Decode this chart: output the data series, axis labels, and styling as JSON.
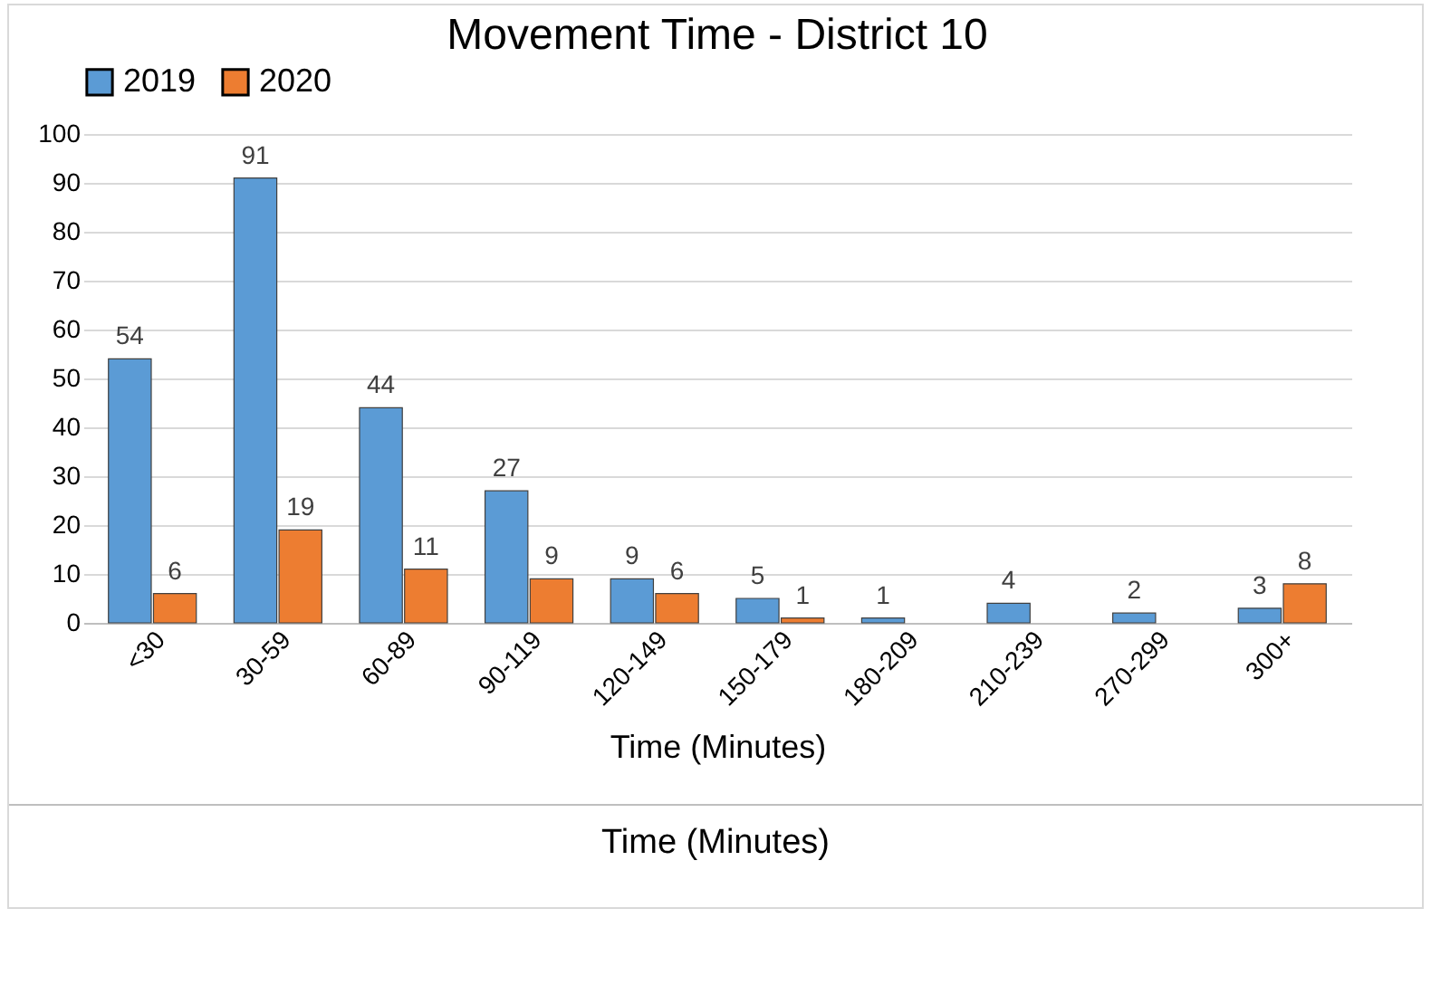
{
  "chart_data": {
    "type": "bar",
    "title": "Movement Time - District 10",
    "xlabel": "Time (Minutes)",
    "categories": [
      "<30",
      "30-59",
      "60-89",
      "90-119",
      "120-149",
      "150-179",
      "180-209",
      "210-239",
      "270-299",
      "300+"
    ],
    "series": [
      {
        "name": "2019",
        "color": "#5b9bd5",
        "values": [
          54,
          91,
          44,
          27,
          9,
          5,
          1,
          4,
          2,
          3
        ]
      },
      {
        "name": "2020",
        "color": "#ed7d31",
        "values": [
          6,
          19,
          11,
          9,
          6,
          1,
          null,
          null,
          null,
          8
        ]
      }
    ],
    "ylim": [
      0,
      100
    ],
    "yticks": [
      0,
      10,
      20,
      30,
      40,
      50,
      60,
      70,
      80,
      90,
      100
    ],
    "grid": "y",
    "legend": "top",
    "data_labels": true,
    "annotations": [
      "Time (Minutes)"
    ]
  }
}
